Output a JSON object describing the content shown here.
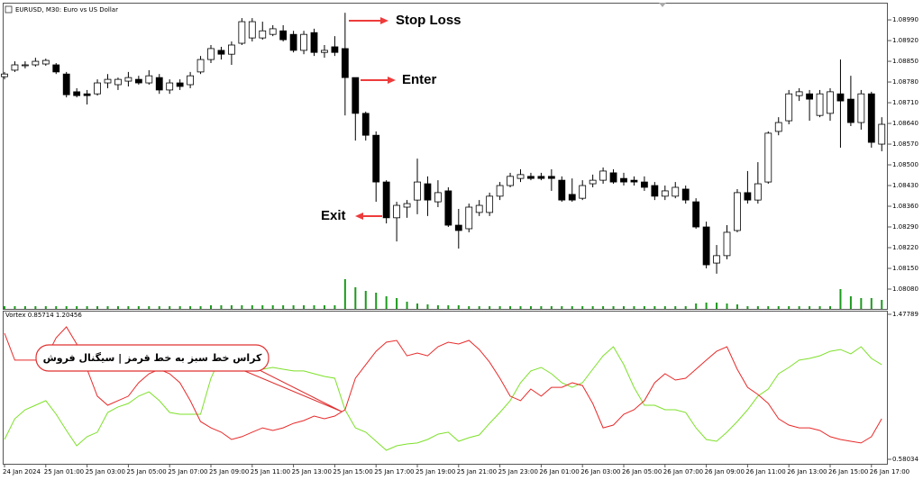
{
  "chart_data": [
    {
      "type": "candlestick",
      "title": "EURUSD, M30: Euro vs US Dollar",
      "categories": [
        "24 Jan 2024",
        null,
        null,
        null,
        "25 Jan 01:00",
        null,
        null,
        null,
        "25 Jan 03:00",
        null,
        null,
        null,
        "25 Jan 05:00",
        null,
        null,
        null,
        "25 Jan 07:00",
        null,
        null,
        null,
        "25 Jan 09:00",
        null,
        null,
        null,
        "25 Jan 11:00",
        null,
        null,
        null,
        "25 Jan 13:00",
        null,
        null,
        null,
        "25 Jan 15:00",
        null,
        null,
        null,
        "25 Jan 17:00",
        null,
        null,
        null,
        "25 Jan 19:00",
        null,
        null,
        null,
        "25 Jan 21:00",
        null,
        null,
        null,
        "25 Jan 23:00",
        null,
        null,
        null,
        "26 Jan 01:00",
        null,
        null,
        null,
        "26 Jan 03:00",
        null,
        null,
        null,
        "26 Jan 05:00",
        null,
        null,
        null,
        "26 Jan 07:00",
        null,
        null,
        null,
        "26 Jan 09:00",
        null,
        null,
        null,
        "26 Jan 11:00",
        null,
        null,
        null,
        "26 Jan 13:00",
        null,
        null,
        null,
        "26 Jan 15:00",
        null,
        null,
        null,
        "26 Jan 17:00",
        null
      ],
      "open": [
        1.08798,
        1.0882,
        1.08838,
        1.08838,
        1.08841,
        1.08838,
        1.08807,
        1.08747,
        1.0874,
        1.0874,
        1.08777,
        1.08771,
        1.08783,
        1.08789,
        1.08777,
        1.08795,
        1.08753,
        1.08777,
        1.08771,
        1.08814,
        1.08856,
        1.08887,
        1.08874,
        1.08911,
        1.08929,
        1.08929,
        1.08941,
        1.08953,
        1.08941,
        1.08887,
        1.08947,
        1.0888,
        1.08899,
        1.08893,
        1.08795,
        1.08674,
        1.086,
        1.08442,
        1.08321,
        1.08357,
        1.08381,
        1.08436,
        1.08375,
        1.08412,
        1.08296,
        1.08284,
        1.08339,
        1.08339,
        1.08394,
        1.0843,
        1.08454,
        1.08461,
        1.08461,
        1.08461,
        1.08448,
        1.084,
        1.08387,
        1.08436,
        1.08448,
        1.08473,
        1.08454,
        1.08448,
        1.08442,
        1.0843,
        1.08394,
        1.08394,
        1.08418,
        1.08375,
        1.0829,
        1.08168,
        1.08193,
        1.08278,
        1.08406,
        1.08381,
        1.08442,
        1.08613,
        1.08649,
        1.08734,
        1.0874,
        1.08667,
        1.08674,
        1.0874,
        1.08722,
        1.08643,
        1.0874,
        1.0857
      ],
      "high": [
        1.08814,
        1.0885,
        1.0885,
        1.08862,
        1.08859,
        1.08844,
        1.08814,
        1.08759,
        1.08753,
        1.08789,
        1.08807,
        1.08795,
        1.08814,
        1.08801,
        1.0882,
        1.08807,
        1.08789,
        1.08789,
        1.08814,
        1.08868,
        1.08905,
        1.08899,
        1.08917,
        1.08996,
        1.08996,
        1.08984,
        1.08972,
        1.08972,
        1.08953,
        1.08953,
        1.0896,
        1.08905,
        1.08935,
        1.09014,
        1.08795,
        1.0868,
        1.08613,
        1.08448,
        1.08375,
        1.08381,
        1.08521,
        1.08461,
        1.08448,
        1.08424,
        1.08351,
        1.08369,
        1.08381,
        1.08406,
        1.08442,
        1.08473,
        1.08485,
        1.08473,
        1.08473,
        1.08485,
        1.08461,
        1.08454,
        1.08448,
        1.08467,
        1.08491,
        1.08485,
        1.08473,
        1.08461,
        1.08461,
        1.08442,
        1.0843,
        1.08442,
        1.0843,
        1.08387,
        1.08308,
        1.08229,
        1.08296,
        1.08418,
        1.08479,
        1.08509,
        1.08613,
        1.08661,
        1.08753,
        1.08759,
        1.08753,
        1.08753,
        1.08759,
        1.08856,
        1.08801,
        1.08753,
        1.08747,
        1.08661
      ],
      "low": [
        1.08789,
        1.08814,
        1.08826,
        1.08832,
        1.08835,
        1.08807,
        1.08728,
        1.08728,
        1.08704,
        1.08734,
        1.08759,
        1.08753,
        1.08765,
        1.08771,
        1.08771,
        1.0874,
        1.0874,
        1.08753,
        1.08759,
        1.08807,
        1.08844,
        1.08856,
        1.08838,
        1.08905,
        1.08917,
        1.08923,
        1.08935,
        1.08917,
        1.0888,
        1.08874,
        1.08868,
        1.08862,
        1.08868,
        1.08667,
        1.08582,
        1.08582,
        1.08375,
        1.08302,
        1.08241,
        1.08321,
        1.08333,
        1.08327,
        1.08357,
        1.0829,
        1.08217,
        1.08272,
        1.08327,
        1.08327,
        1.08381,
        1.08424,
        1.08442,
        1.08448,
        1.08448,
        1.08412,
        1.08375,
        1.08375,
        1.08381,
        1.08424,
        1.08436,
        1.08436,
        1.0843,
        1.0843,
        1.08412,
        1.08381,
        1.08381,
        1.08387,
        1.08369,
        1.08284,
        1.0815,
        1.08132,
        1.08181,
        1.08272,
        1.08369,
        1.08369,
        1.08436,
        1.086,
        1.08637,
        1.08716,
        1.08649,
        1.08661,
        1.08649,
        1.08558,
        1.08631,
        1.08619,
        1.08558,
        1.08546
      ],
      "close": [
        1.08807,
        1.08838,
        1.08838,
        1.0885,
        1.08853,
        1.08814,
        1.08737,
        1.08734,
        1.08734,
        1.08777,
        1.08789,
        1.08789,
        1.08795,
        1.08777,
        1.08801,
        1.08753,
        1.08777,
        1.08765,
        1.08801,
        1.08856,
        1.08893,
        1.08874,
        1.08905,
        1.08984,
        1.08984,
        1.08953,
        1.0896,
        1.08923,
        1.08887,
        1.08941,
        1.0888,
        1.08887,
        1.0888,
        1.08795,
        1.08674,
        1.086,
        1.08442,
        1.08321,
        1.08363,
        1.08369,
        1.08442,
        1.08381,
        1.08406,
        1.08296,
        1.08278,
        1.08357,
        1.08363,
        1.08394,
        1.0843,
        1.08461,
        1.08467,
        1.08454,
        1.08454,
        1.08454,
        1.08381,
        1.08381,
        1.0843,
        1.08448,
        1.08479,
        1.08442,
        1.08442,
        1.08442,
        1.08424,
        1.08394,
        1.08412,
        1.08424,
        1.08381,
        1.0829,
        1.08162,
        1.08193,
        1.08272,
        1.08406,
        1.08381,
        1.08436,
        1.08607,
        1.08643,
        1.0874,
        1.08747,
        1.08722,
        1.0874,
        1.08747,
        1.08716,
        1.08643,
        1.0874,
        1.08576,
        1.08637
      ],
      "volume": [
        3,
        3,
        3,
        3,
        3,
        3,
        3,
        3,
        3,
        3,
        3,
        3,
        3,
        3,
        3,
        3,
        3,
        3,
        3,
        3,
        4,
        4,
        4,
        4,
        4,
        4,
        4,
        4,
        4,
        4,
        4,
        4,
        4,
        33,
        24,
        20,
        18,
        14,
        12,
        8,
        6,
        5,
        4,
        4,
        4,
        3,
        3,
        3,
        3,
        3,
        3,
        3,
        3,
        3,
        3,
        3,
        3,
        3,
        3,
        3,
        3,
        3,
        3,
        3,
        3,
        3,
        3,
        6,
        7,
        7,
        6,
        5,
        3,
        3,
        3,
        3,
        3,
        3,
        3,
        3,
        3,
        22,
        14,
        12,
        12,
        10
      ],
      "up_color": "#ffffff",
      "down_color": "#000000",
      "volume_color": "#1d9a1d",
      "ylim": [
        1.08013,
        1.09042
      ],
      "yticks": [
        {
          "value": 1.0899,
          "label": "1.08990"
        },
        {
          "value": 1.0892,
          "label": "1.08920"
        },
        {
          "value": 1.0885,
          "label": "1.08850"
        },
        {
          "value": 1.0878,
          "label": "1.08780"
        },
        {
          "value": 1.0871,
          "label": "1.08710"
        },
        {
          "value": 1.0864,
          "label": "1.08640"
        },
        {
          "value": 1.0857,
          "label": "1.08570"
        },
        {
          "value": 1.085,
          "label": "1.08500"
        },
        {
          "value": 1.0843,
          "label": "1.08430"
        },
        {
          "value": 1.0836,
          "label": "1.08360"
        },
        {
          "value": 1.0829,
          "label": "1.08290"
        },
        {
          "value": 1.0822,
          "label": "1.08220"
        },
        {
          "value": 1.0815,
          "label": "1.08150"
        },
        {
          "value": 1.0808,
          "label": "1.08080"
        }
      ],
      "annotations": [
        {
          "text": "Stop Loss",
          "color": "#ee3b3b"
        },
        {
          "text": "Enter",
          "color": "#2ea84a"
        },
        {
          "text": "Exit",
          "color": "#2255dd"
        },
        {
          "text": "کراس خط سبز به خط قرمز | سیگنال فروش",
          "color": "#e03030"
        }
      ]
    },
    {
      "type": "line",
      "title": "Vortex 0.85714 1.20456",
      "series": [
        {
          "color": "#7ee02a",
          "values": [
            0.703,
            0.831,
            0.887,
            0.915,
            0.943,
            0.859,
            0.759,
            0.664,
            0.72,
            0.748,
            0.87,
            0.904,
            0.926,
            0.971,
            0.998,
            0.943,
            0.87,
            0.859,
            0.859,
            0.859,
            1.082,
            1.221,
            1.249,
            1.194,
            1.149,
            1.138,
            1.149,
            1.138,
            1.127,
            1.127,
            1.11,
            1.093,
            1.082,
            0.887,
            0.775,
            0.748,
            0.692,
            0.636,
            0.664,
            0.675,
            0.681,
            0.703,
            0.736,
            0.748,
            0.692,
            0.714,
            0.731,
            0.803,
            0.87,
            0.943,
            1.054,
            1.127,
            1.149,
            1.11,
            1.054,
            1.026,
            1.054,
            1.138,
            1.221,
            1.277,
            1.166,
            1.026,
            0.915,
            0.915,
            0.887,
            0.887,
            0.87,
            0.775,
            0.703,
            0.692,
            0.748,
            0.814,
            0.887,
            0.971,
            1.015,
            1.11,
            1.149,
            1.194,
            1.205,
            1.221,
            1.249,
            1.26,
            1.233,
            1.277,
            1.205,
            1.166
          ]
        },
        {
          "color": "#e82a2a",
          "values": [
            1.361,
            1.194,
            1.194,
            1.194,
            1.205,
            1.333,
            1.4,
            1.294,
            1.138,
            0.971,
            0.915,
            0.943,
            0.971,
            1.054,
            1.11,
            1.138,
            1.11,
            1.054,
            0.943,
            0.814,
            0.775,
            0.748,
            0.703,
            0.72,
            0.748,
            0.775,
            0.759,
            0.775,
            0.803,
            0.82,
            0.848,
            0.831,
            0.848,
            0.887,
            1.082,
            1.166,
            1.249,
            1.305,
            1.316,
            1.221,
            1.238,
            1.221,
            1.277,
            1.305,
            1.294,
            1.316,
            1.26,
            1.182,
            1.082,
            0.971,
            0.943,
            1.015,
            0.971,
            1.026,
            1.026,
            1.054,
            1.037,
            0.926,
            0.775,
            0.792,
            0.859,
            0.887,
            0.943,
            1.054,
            1.11,
            1.071,
            1.082,
            1.138,
            1.194,
            1.249,
            1.277,
            1.138,
            1.026,
            0.982,
            0.926,
            0.831,
            0.792,
            0.775,
            0.775,
            0.759,
            0.72,
            0.703,
            0.692,
            0.681,
            0.72,
            0.831
          ]
        }
      ],
      "ylim": [
        0.58034,
        1.47789
      ],
      "yticks": [
        1.47789,
        0.58034
      ]
    }
  ]
}
